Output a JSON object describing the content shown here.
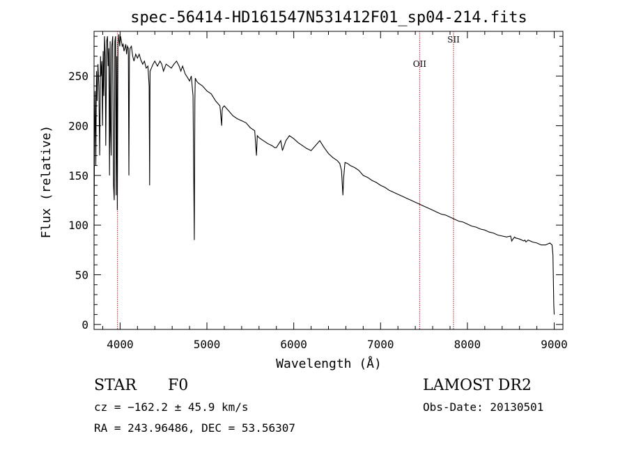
{
  "chart_data": {
    "type": "line",
    "title": "spec-56414-HD161547N531412F01_sp04-214.fits",
    "xlabel": "Wavelength (Å)",
    "ylabel": "Flux (relative)",
    "xlim": [
      3700,
      9100
    ],
    "ylim": [
      -5,
      295
    ],
    "x_ticks": [
      4000,
      5000,
      6000,
      7000,
      8000,
      9000
    ],
    "y_ticks": [
      0,
      50,
      100,
      150,
      200,
      250
    ],
    "x_tick_labels": [
      "4000",
      "5000",
      "6000",
      "7000",
      "8000",
      "9000"
    ],
    "y_tick_labels": [
      "0",
      "50",
      "100",
      "150",
      "200",
      "250"
    ],
    "grid": false,
    "line_color": "#000000",
    "marker_color": "#aa2222",
    "line_markers": [
      {
        "x": 3970,
        "label": ""
      },
      {
        "x": 7450,
        "label": "OII"
      },
      {
        "x": 7840,
        "label": "SII"
      }
    ],
    "series": [
      {
        "x": [
          3700,
          3705,
          3712,
          3720,
          3728,
          3735,
          3745,
          3755,
          3765,
          3775,
          3780,
          3790,
          3798,
          3805,
          3812,
          3820,
          3828,
          3835,
          3845,
          3855,
          3862,
          3870,
          3878,
          3885,
          3890,
          3897,
          3905,
          3915,
          3925,
          3933,
          3940,
          3948,
          3955,
          3962,
          3968,
          3975,
          3985,
          3995,
          4005,
          4015,
          4025,
          4035,
          4045,
          4055,
          4065,
          4075,
          4085,
          4095,
          4101,
          4108,
          4115,
          4130,
          4145,
          4160,
          4180,
          4200,
          4220,
          4240,
          4260,
          4280,
          4300,
          4320,
          4335,
          4340,
          4345,
          4360,
          4380,
          4400,
          4430,
          4460,
          4480,
          4500,
          4530,
          4560,
          4590,
          4620,
          4650,
          4680,
          4700,
          4720,
          4750,
          4780,
          4800,
          4820,
          4840,
          4855,
          4861,
          4866,
          4880,
          4900,
          4950,
          5000,
          5050,
          5100,
          5150,
          5170,
          5175,
          5180,
          5200,
          5250,
          5300,
          5350,
          5400,
          5450,
          5500,
          5550,
          5570,
          5580,
          5600,
          5650,
          5700,
          5750,
          5780,
          5800,
          5850,
          5870,
          5890,
          5910,
          5950,
          6000,
          6050,
          6100,
          6150,
          6200,
          6250,
          6300,
          6350,
          6400,
          6450,
          6500,
          6530,
          6550,
          6560,
          6566,
          6575,
          6590,
          6620,
          6650,
          6700,
          6750,
          6800,
          6850,
          6900,
          6950,
          7000,
          7050,
          7100,
          7150,
          7200,
          7250,
          7300,
          7350,
          7400,
          7450,
          7500,
          7550,
          7600,
          7650,
          7700,
          7750,
          7800,
          7850,
          7900,
          7950,
          8000,
          8050,
          8100,
          8150,
          8200,
          8250,
          8300,
          8350,
          8400,
          8450,
          8498,
          8510,
          8542,
          8555,
          8600,
          8650,
          8662,
          8675,
          8700,
          8750,
          8800,
          8850,
          8900,
          8950,
          8975,
          8985,
          8990,
          8995,
          9000
        ],
        "y": [
          95,
          180,
          235,
          160,
          255,
          225,
          262,
          240,
          170,
          270,
          250,
          265,
          200,
          275,
          230,
          290,
          270,
          180,
          285,
          290,
          260,
          278,
          150,
          285,
          195,
          170,
          280,
          290,
          140,
          125,
          285,
          290,
          130,
          270,
          115,
          280,
          292,
          280,
          290,
          285,
          280,
          282,
          275,
          278,
          282,
          272,
          280,
          278,
          150,
          270,
          278,
          280,
          270,
          265,
          272,
          268,
          272,
          266,
          262,
          265,
          258,
          260,
          240,
          140,
          255,
          258,
          262,
          265,
          260,
          265,
          262,
          255,
          262,
          260,
          258,
          262,
          265,
          260,
          255,
          260,
          252,
          248,
          245,
          250,
          230,
          85,
          225,
          248,
          245,
          243,
          240,
          235,
          232,
          225,
          220,
          200,
          215,
          218,
          220,
          215,
          210,
          207,
          205,
          203,
          198,
          195,
          170,
          190,
          188,
          185,
          182,
          180,
          178,
          178,
          185,
          175,
          180,
          185,
          190,
          187,
          183,
          180,
          177,
          175,
          180,
          185,
          178,
          172,
          168,
          165,
          162,
          155,
          140,
          130,
          148,
          163,
          162,
          160,
          158,
          155,
          150,
          148,
          145,
          143,
          140,
          138,
          135,
          133,
          131,
          129,
          127,
          125,
          123,
          121,
          119,
          117,
          115,
          113,
          111,
          110,
          108,
          106,
          104,
          103,
          101,
          99,
          98,
          96,
          95,
          93,
          92,
          90,
          89,
          88,
          89,
          84,
          88,
          87,
          86,
          84,
          85,
          83,
          85,
          83,
          82,
          80,
          80,
          82,
          80,
          70,
          45,
          20,
          10
        ]
      }
    ]
  },
  "labels": {
    "object_type": "STAR",
    "subclass": "F0",
    "survey": "LAMOST DR2",
    "cz": "cz = −162.2 ± 45.9 km/s",
    "obs_date": "Obs-Date: 20130501",
    "coords": "RA = 243.96486, DEC =  53.56307"
  }
}
